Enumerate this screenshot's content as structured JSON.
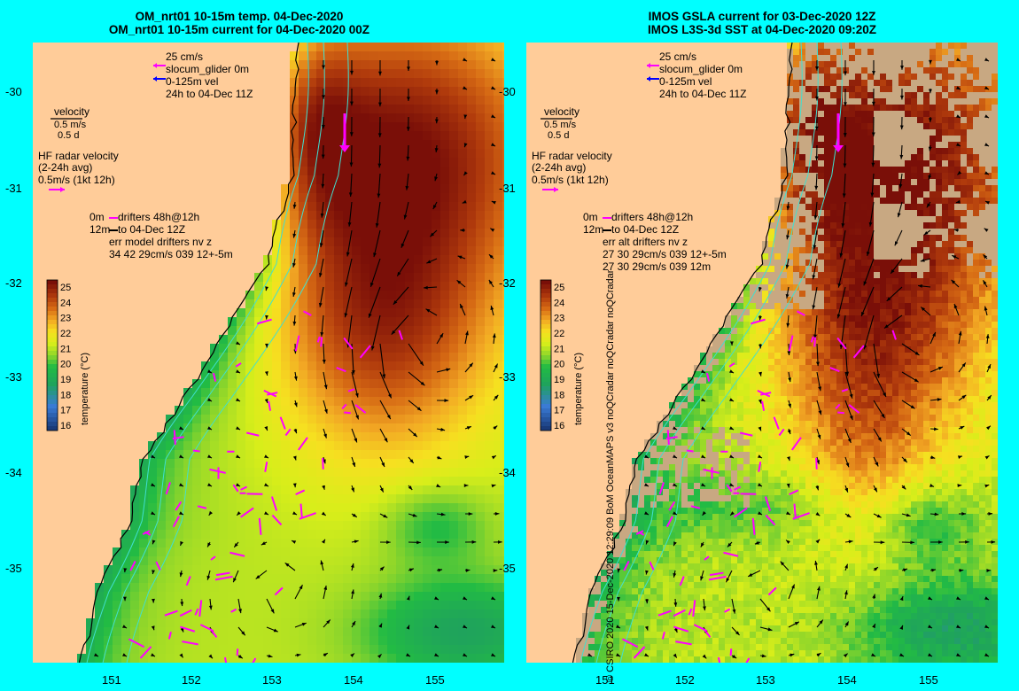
{
  "left": {
    "title_line1": "OM_nrt01 10-15m temp. 04-Dec-2020",
    "title_line2": "OM_nrt01 10-15m current for 04-Dec-2020 00Z",
    "legend_top": [
      "25 cm/s",
      "slocum_glider 0m",
      "0-125m vel",
      "24h to 04-Dec 11Z"
    ],
    "velocity": [
      "velocity",
      "0.5 m/s",
      "0.5 d"
    ],
    "hf": [
      "HF radar velocity",
      "(2-24h avg)",
      "0.5m/s (1kt 12h)"
    ],
    "drifters": [
      "0m",
      "drifters 48h@12h",
      "12m",
      "to 04-Dec 12Z",
      "err model drifters nv z",
      "34 42 29cm/s 039 12+-5m"
    ]
  },
  "right": {
    "title_line1": "IMOS GSLA current for 03-Dec-2020 12Z",
    "title_line2": "IMOS L3S-3d SST at 04-Dec-2020 09:20Z",
    "legend_top": [
      "25 cm/s",
      "slocum_glider 0m",
      "0-125m vel",
      "24h to 04-Dec 11Z"
    ],
    "velocity": [
      "velocity",
      "0.5 m/s",
      "0.5 d"
    ],
    "hf": [
      "HF radar velocity",
      "(2-24h avg)",
      "0.5m/s (1kt 12h)"
    ],
    "drifters": [
      "0m",
      "drifters 48h@12h",
      "12m",
      "to 04-Dec 12Z",
      "err alt drifters nv z",
      "27 30 29cm/s 039 12+-5m",
      "27 30 29cm/s 039 12m"
    ]
  },
  "lat_labels": [
    "-30",
    "-31",
    "-32",
    "-33",
    "-34",
    "-35"
  ],
  "lon_labels": [
    "151",
    "152",
    "153",
    "154",
    "155"
  ],
  "colorbar": {
    "ticks": [
      "25",
      "24",
      "23",
      "22",
      "21",
      "20",
      "19",
      "18",
      "17",
      "16"
    ],
    "label": "temperature (°C)"
  },
  "credit": "© CSIRO 2020   15-Dec-2020 12:29:09 BoM OceanMAPS v3 noQCradar noQCradar noQCradar",
  "colors": {
    "background": "#00ffff",
    "land": "#ffcc99",
    "missing": "#c8a882",
    "glider": "#ff00ff",
    "vel": "#0000ff"
  }
}
